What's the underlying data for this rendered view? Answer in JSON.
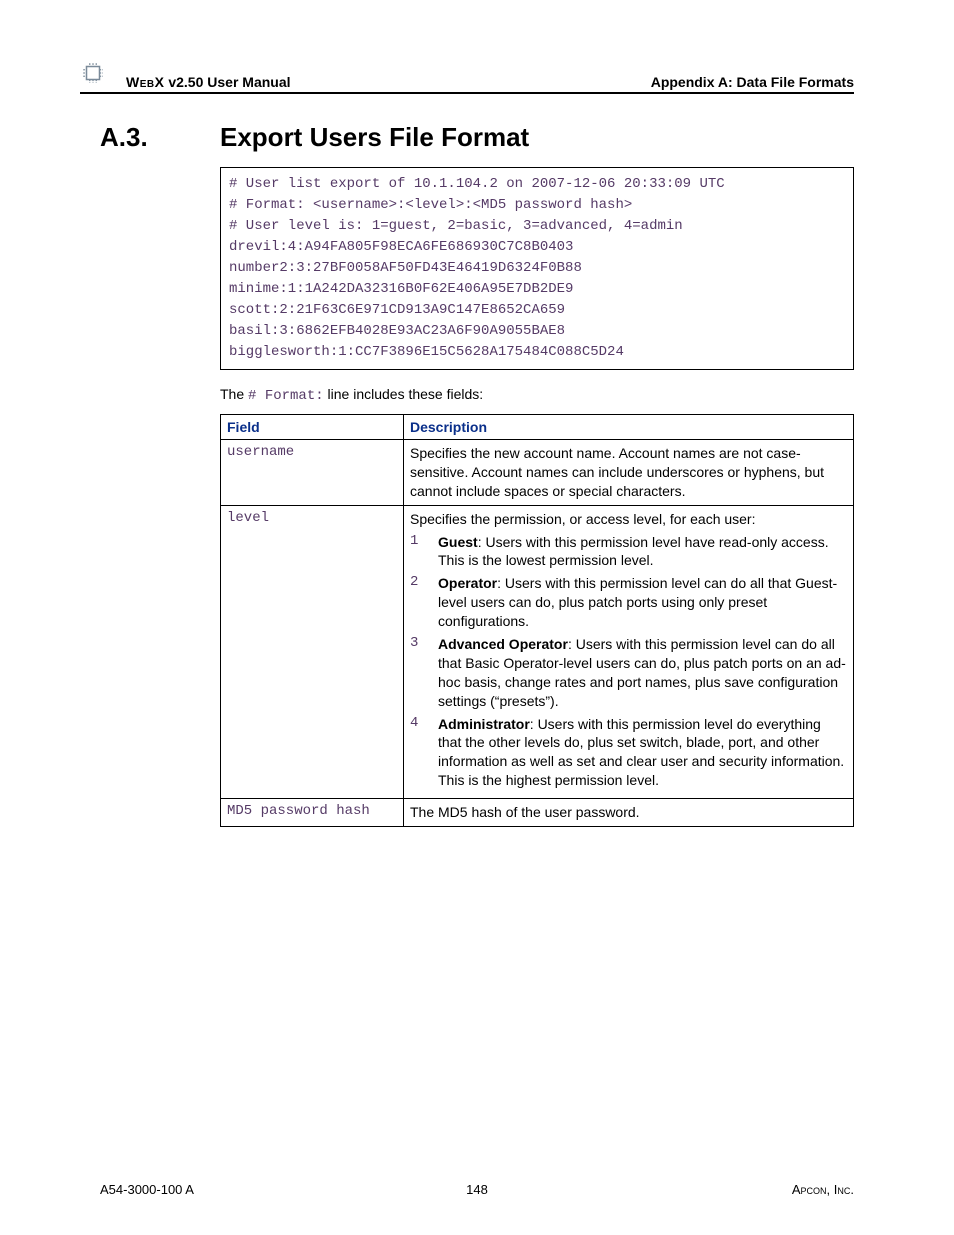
{
  "header": {
    "product": "WebX",
    "version_label": "v2.50 User Manual",
    "appendix": "Appendix A: Data File Formats"
  },
  "section": {
    "number": "A.3.",
    "title": "Export Users File Format"
  },
  "code_lines": [
    "# User list export of 10.1.104.2 on 2007-12-06 20:33:09 UTC",
    "# Format: <username>:<level>:<MD5 password hash>",
    "# User level is: 1=guest, 2=basic, 3=advanced, 4=admin",
    "drevil:4:A94FA805F98ECA6FE686930C7C8B0403",
    "number2:3:27BF0058AF50FD43E46419D6324F0B88",
    "minime:1:1A242DA32316B0F62E406A95E7DB2DE9",
    "scott:2:21F63C6E971CD913A9C147E8652CA659",
    "basil:3:6862EFB4028E93AC23A6F90A9055BAE8",
    "bigglesworth:1:CC7F3896E15C5628A175484C088C5D24"
  ],
  "intro": {
    "prefix": "The ",
    "mono": "# Format:",
    "suffix": " line includes these fields:"
  },
  "table": {
    "col_field": "Field",
    "col_desc": "Description",
    "rows": {
      "username": {
        "field": "username",
        "desc": "Specifies the new account name. Account names are not case-sensitive. Account names can include underscores or hyphens, but cannot include spaces or special characters."
      },
      "level": {
        "field": "level",
        "intro": "Specifies the permission, or access level, for each user:",
        "levels": [
          {
            "num": "1",
            "name": "Guest",
            "text": ": Users with this permission level have read-only access. This is the lowest permission level."
          },
          {
            "num": "2",
            "name": "Operator",
            "text": ": Users with this permission level can do all that Guest-level users can do, plus patch ports using only preset configurations."
          },
          {
            "num": "3",
            "name": "Advanced Operator",
            "text": ": Users with this permission level can do all that Basic Operator-level users can do, plus patch ports on an ad-hoc basis, change rates and port names, plus save configuration settings (“presets”)."
          },
          {
            "num": "4",
            "name": "Administrator",
            "text": ": Users with this permission level do everything that the other levels do, plus set switch, blade, port, and other information as well as set and clear user and security information. This is the highest permission level."
          }
        ]
      },
      "md5": {
        "field": "MD5 password hash",
        "desc": "The MD5 hash of the user password."
      }
    }
  },
  "footer": {
    "doc_id": "A54-3000-100 A",
    "page": "148",
    "company": "Apcon, Inc."
  },
  "colors": {
    "heading_blue": "#0a2f8a",
    "mono_purple": "#553a66"
  }
}
